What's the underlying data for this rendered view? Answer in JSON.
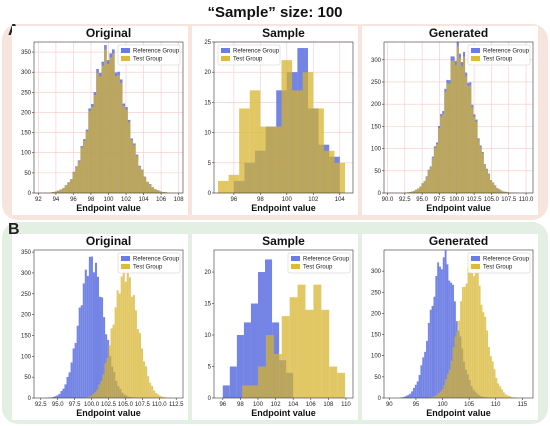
{
  "title": "“Sample” size: 100",
  "panels": [
    {
      "letter": "A"
    },
    {
      "letter": "B"
    }
  ],
  "colors": {
    "reference": "#5b6ee1",
    "test": "#d7b32a",
    "overlap": "#a08a66",
    "panel_a_bg": "#f7e4dc",
    "panel_b_bg": "#e3efe3",
    "grid": "#f2caca"
  },
  "chart_data": [
    {
      "id": "a-original",
      "type": "bar",
      "title": "Original",
      "xlabel": "Endpoint value",
      "legend": [
        "Reference Group",
        "Test Group"
      ],
      "legend_position": "top-right",
      "grid": true,
      "xlim": [
        91.5,
        108.5
      ],
      "ylim": [
        0,
        375
      ],
      "xticks": [
        92,
        94,
        96,
        98,
        100,
        102,
        104,
        106,
        108
      ],
      "yticks": [
        0,
        50,
        100,
        150,
        200,
        250,
        300,
        350
      ],
      "series": [
        {
          "name": "Reference Group",
          "mean": 100,
          "sd": 2,
          "peak": 350,
          "bin": 0.3,
          "range": [
            93.5,
            106.5
          ]
        },
        {
          "name": "Test Group",
          "mean": 100,
          "sd": 2,
          "peak": 340,
          "bin": 0.3,
          "range": [
            93.5,
            106.5
          ]
        }
      ]
    },
    {
      "id": "a-sample",
      "type": "bar",
      "title": "Sample",
      "xlabel": "Endpoint value",
      "legend": [
        "Reference Group",
        "Test Group"
      ],
      "legend_position": "top-left",
      "grid": true,
      "xlim": [
        94.5,
        105
      ],
      "ylim": [
        0,
        25
      ],
      "xticks": [
        96,
        98,
        100,
        102,
        104
      ],
      "yticks": [
        0,
        5,
        10,
        15,
        20,
        25
      ],
      "series": [
        {
          "name": "Reference Group",
          "bin_edges": [
            95.2,
            96.0,
            96.8,
            97.6,
            98.4,
            99.2,
            100.0,
            100.8,
            101.6,
            102.4,
            103.2,
            104.0
          ],
          "counts": [
            0,
            2,
            5,
            7,
            11,
            17,
            20,
            24,
            14,
            8,
            6
          ]
        },
        {
          "name": "Test Group",
          "bin_edges": [
            94.8,
            95.6,
            96.4,
            97.2,
            98.0,
            98.8,
            99.6,
            100.4,
            101.2,
            102.0,
            102.8,
            103.6,
            104.4
          ],
          "counts": [
            2,
            3,
            14,
            17,
            11,
            11,
            22,
            17,
            20,
            14,
            7,
            5
          ]
        }
      ]
    },
    {
      "id": "a-generated",
      "type": "bar",
      "title": "Generated",
      "xlabel": "Endpoint value",
      "legend": [
        "Reference Group",
        "Test Group"
      ],
      "legend_position": "top-right",
      "grid": true,
      "xlim": [
        89.5,
        111
      ],
      "ylim": [
        0,
        340
      ],
      "xticks": [
        90.0,
        92.5,
        95.0,
        97.5,
        100.0,
        102.5,
        105.0,
        107.5,
        110.0
      ],
      "xtick_labels": [
        "90.0",
        "92.5",
        "95.0",
        "97.5",
        "100.0",
        "102.5",
        "105.0",
        "107.5",
        "110.0"
      ],
      "yticks": [
        0,
        50,
        100,
        150,
        200,
        250,
        300
      ],
      "series": [
        {
          "name": "Reference Group",
          "mean": 100.2,
          "sd": 2.2,
          "peak": 320,
          "bin": 0.3,
          "range": [
            92.5,
            108.5
          ]
        },
        {
          "name": "Test Group",
          "mean": 100.2,
          "sd": 2.2,
          "peak": 310,
          "bin": 0.3,
          "range": [
            92.5,
            108.5
          ]
        }
      ]
    },
    {
      "id": "b-original",
      "type": "bar",
      "title": "Original",
      "xlabel": "Endpoint value",
      "legend": [
        "Reference Group",
        "Test Group"
      ],
      "legend_position": "top-right",
      "grid": false,
      "xlim": [
        91.5,
        113.5
      ],
      "ylim": [
        0,
        355
      ],
      "xticks": [
        92.5,
        95.0,
        97.5,
        100.0,
        102.5,
        105.0,
        107.5,
        110.0,
        112.5
      ],
      "xtick_labels": [
        "92.5",
        "95.0",
        "97.5",
        "100.0",
        "102.5",
        "105.0",
        "107.5",
        "110.0",
        "112.5"
      ],
      "yticks": [
        0,
        50,
        100,
        150,
        200,
        250,
        300,
        350
      ],
      "series": [
        {
          "name": "Reference Group",
          "mean": 100,
          "sd": 1.8,
          "peak": 330,
          "bin": 0.3,
          "range": [
            93.0,
            107.0
          ]
        },
        {
          "name": "Test Group",
          "mean": 105,
          "sd": 1.8,
          "peak": 300,
          "bin": 0.3,
          "range": [
            98.0,
            112.0
          ]
        }
      ]
    },
    {
      "id": "b-sample",
      "type": "bar",
      "title": "Sample",
      "xlabel": "Endpoint value",
      "legend": [
        "Reference Group",
        "Test Group"
      ],
      "legend_position": "top-right",
      "grid": false,
      "xlim": [
        95,
        110.8
      ],
      "ylim": [
        0,
        23.5
      ],
      "xticks": [
        96,
        98,
        100,
        102,
        104,
        106,
        108,
        110
      ],
      "yticks": [
        0,
        5,
        10,
        15,
        20
      ],
      "series": [
        {
          "name": "Reference Group",
          "bin_edges": [
            96.0,
            96.8,
            97.6,
            98.4,
            99.2,
            100.0,
            100.8,
            101.6,
            102.4,
            103.2,
            104.0
          ],
          "counts": [
            2,
            5,
            10,
            12,
            15,
            20,
            22,
            12,
            6,
            4
          ]
        },
        {
          "name": "Test Group",
          "bin_edges": [
            98.2,
            99.1,
            100.0,
            100.9,
            101.8,
            102.7,
            103.6,
            104.5,
            105.4,
            106.3,
            107.2,
            108.1,
            109.0,
            109.9
          ],
          "counts": [
            2,
            2,
            5,
            10,
            7,
            13,
            16,
            18,
            14,
            18,
            14,
            5,
            4
          ]
        }
      ]
    },
    {
      "id": "b-generated",
      "type": "bar",
      "title": "Generated",
      "xlabel": "Endpoint value",
      "legend": [
        "Reference Group",
        "Test Group"
      ],
      "legend_position": "top-right",
      "grid": false,
      "xlim": [
        89,
        117
      ],
      "ylim": [
        0,
        350
      ],
      "xticks": [
        90,
        95,
        100,
        105,
        110,
        115
      ],
      "yticks": [
        0,
        50,
        100,
        150,
        200,
        250,
        300
      ],
      "series": [
        {
          "name": "Reference Group",
          "mean": 100.2,
          "sd": 2.4,
          "peak": 330,
          "bin": 0.35,
          "range": [
            92.0,
            109.0
          ]
        },
        {
          "name": "Test Group",
          "mean": 105.5,
          "sd": 2.4,
          "peak": 315,
          "bin": 0.35,
          "range": [
            97.0,
            114.0
          ]
        }
      ]
    }
  ]
}
